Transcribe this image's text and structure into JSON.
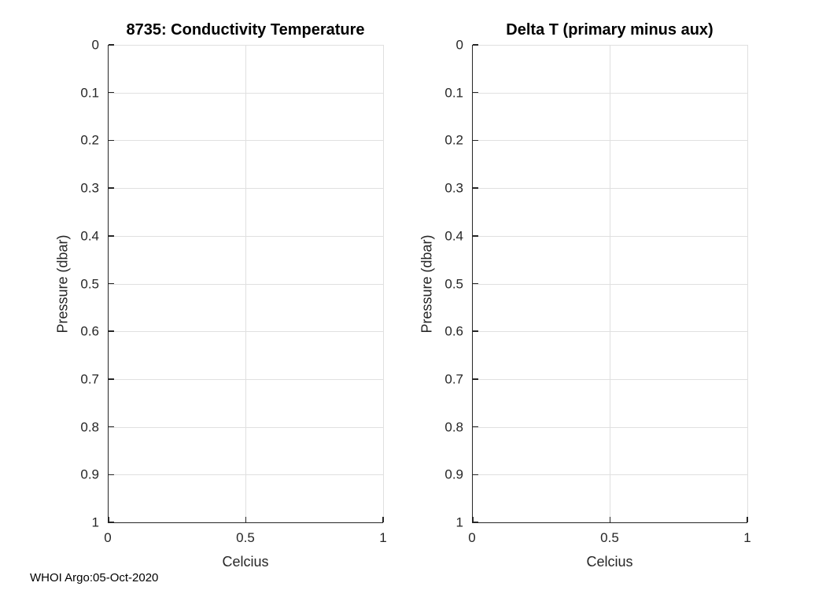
{
  "style": {
    "background": "#ffffff",
    "axis_color": "#262626",
    "grid_color": "#e0e0e0",
    "tick_label_color": "#262626",
    "title_color": "#000000"
  },
  "footer": {
    "watermark": "WHOI Argo:05-Oct-2020"
  },
  "chart_data": [
    {
      "type": "line",
      "title": "8735: Conductivity Temperature",
      "xlabel": "Celcius",
      "ylabel": "Pressure (dbar)",
      "xlim": [
        0,
        1
      ],
      "ylim": [
        0,
        1
      ],
      "ydir": "reverse",
      "grid": true,
      "legend": null,
      "x_ticks": [
        0,
        0.5,
        1
      ],
      "x_tick_labels": [
        "0",
        "0.5",
        "1"
      ],
      "y_ticks": [
        0,
        0.1,
        0.2,
        0.3,
        0.4,
        0.5,
        0.6,
        0.7,
        0.8,
        0.9,
        1
      ],
      "y_tick_labels": [
        "0",
        "0.1",
        "0.2",
        "0.3",
        "0.4",
        "0.5",
        "0.6",
        "0.7",
        "0.8",
        "0.9",
        "1"
      ],
      "series": []
    },
    {
      "type": "line",
      "title": "Delta T (primary minus aux)",
      "xlabel": "Celcius",
      "ylabel": "Pressure (dbar)",
      "xlim": [
        0,
        1
      ],
      "ylim": [
        0,
        1
      ],
      "ydir": "reverse",
      "grid": true,
      "legend": null,
      "x_ticks": [
        0,
        0.5,
        1
      ],
      "x_tick_labels": [
        "0",
        "0.5",
        "1"
      ],
      "y_ticks": [
        0,
        0.1,
        0.2,
        0.3,
        0.4,
        0.5,
        0.6,
        0.7,
        0.8,
        0.9,
        1
      ],
      "y_tick_labels": [
        "0",
        "0.1",
        "0.2",
        "0.3",
        "0.4",
        "0.5",
        "0.6",
        "0.7",
        "0.8",
        "0.9",
        "1"
      ],
      "series": []
    }
  ]
}
